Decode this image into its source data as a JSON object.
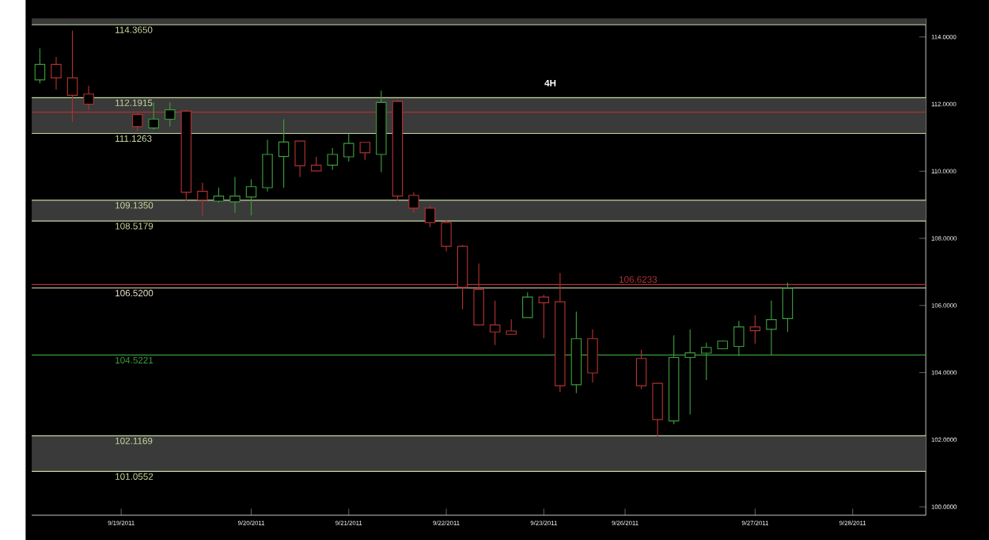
{
  "chart_data": {
    "type": "candlestick",
    "annotations": [
      "4H"
    ],
    "categories": [
      null,
      null,
      null,
      null,
      null,
      "9/19/2011",
      null,
      null,
      null,
      null,
      null,
      null,
      null,
      "9/20/2011",
      null,
      null,
      null,
      null,
      null,
      "9/21/2011",
      null,
      null,
      null,
      null,
      null,
      "9/22/2011",
      null,
      null,
      null,
      null,
      null,
      "9/23/2011",
      null,
      null,
      null,
      null,
      "9/26/2011",
      null,
      null,
      null,
      null,
      null,
      null,
      null,
      "9/27/2011",
      null,
      null,
      null,
      null,
      null,
      "9/28/2011",
      null,
      null,
      null,
      null
    ],
    "ohlc": [
      [
        112.72,
        113.66,
        112.62,
        113.18
      ],
      [
        113.18,
        113.4,
        112.43,
        112.78
      ],
      [
        112.78,
        114.19,
        111.47,
        112.26
      ],
      [
        112.3,
        112.55,
        111.83,
        112.0
      ],
      null,
      null,
      [
        111.69,
        111.73,
        111.19,
        111.33
      ],
      [
        111.29,
        112.05,
        111.23,
        111.55
      ],
      [
        111.55,
        112.05,
        111.33,
        111.83
      ],
      [
        111.79,
        111.83,
        109.11,
        109.37
      ],
      [
        109.4,
        109.66,
        108.68,
        109.14
      ],
      [
        109.11,
        109.51,
        109.06,
        109.26
      ],
      [
        109.09,
        109.83,
        108.76,
        109.26
      ],
      [
        109.23,
        109.76,
        108.68,
        109.54
      ],
      [
        109.51,
        110.94,
        109.4,
        110.5
      ],
      [
        110.44,
        111.55,
        109.51,
        110.87
      ],
      [
        110.9,
        110.9,
        109.83,
        110.16
      ],
      [
        110.18,
        110.43,
        110.01,
        110.01
      ],
      [
        110.18,
        110.69,
        110.04,
        110.5
      ],
      [
        110.43,
        111.12,
        110.29,
        110.83
      ],
      [
        110.86,
        110.86,
        110.33,
        110.55
      ],
      [
        110.5,
        112.4,
        109.97,
        112.05
      ],
      [
        112.08,
        112.12,
        109.11,
        109.26
      ],
      [
        109.28,
        109.37,
        108.76,
        108.9
      ],
      [
        108.9,
        108.97,
        108.33,
        108.47
      ],
      [
        108.47,
        108.54,
        107.61,
        107.76
      ],
      [
        107.76,
        107.8,
        105.89,
        106.54
      ],
      [
        106.48,
        107.25,
        105.4,
        105.42
      ],
      [
        105.42,
        106.14,
        104.82,
        105.21
      ],
      [
        105.24,
        105.59,
        105.14,
        105.14
      ],
      [
        105.64,
        106.39,
        105.64,
        106.25
      ],
      [
        106.25,
        106.32,
        105.03,
        106.08
      ],
      [
        106.11,
        106.97,
        103.42,
        103.61
      ],
      [
        103.64,
        105.82,
        103.39,
        105.01
      ],
      [
        105.01,
        105.29,
        103.7,
        103.99
      ],
      null,
      null,
      [
        104.42,
        104.68,
        103.51,
        103.61
      ],
      [
        103.68,
        103.68,
        102.1,
        102.6
      ],
      [
        102.56,
        105.11,
        102.46,
        104.45
      ],
      [
        104.45,
        105.29,
        102.75,
        104.59
      ],
      [
        104.58,
        104.89,
        103.78,
        104.75
      ],
      [
        104.71,
        104.96,
        104.71,
        104.94
      ],
      [
        104.78,
        105.54,
        104.49,
        105.36
      ],
      [
        105.36,
        105.71,
        104.86,
        105.25
      ],
      [
        105.29,
        106.15,
        104.51,
        105.58
      ],
      [
        105.61,
        106.68,
        105.21,
        106.51
      ],
      null,
      null,
      null,
      null,
      null,
      null,
      null,
      null
    ],
    "colors": [
      "#3c9a3c",
      "#b03030",
      "#b03030",
      "#b03030",
      null,
      null,
      "#b03030",
      "#3c9a3c",
      "#3c9a3c",
      "#b03030",
      "#b03030",
      "#3c9a3c",
      "#3c9a3c",
      "#3c9a3c",
      "#3c9a3c",
      "#3c9a3c",
      "#b03030",
      "#b03030",
      "#3c9a3c",
      "#3c9a3c",
      "#b03030",
      "#3c9a3c",
      "#b03030",
      "#b03030",
      "#b03030",
      "#b03030",
      "#b03030",
      "#b03030",
      "#b03030",
      "#b03030",
      "#3c9a3c",
      "#b03030",
      "#b03030",
      "#3c9a3c",
      "#b03030",
      null,
      null,
      "#b03030",
      "#b03030",
      "#3c9a3c",
      "#3c9a3c",
      "#3c9a3c",
      "#3c9a3c",
      "#3c9a3c",
      "#b03030",
      "#3c9a3c",
      "#3c9a3c",
      null,
      null,
      null,
      null,
      null,
      null,
      null,
      null
    ],
    "ylim": [
      99.75,
      114.55
    ],
    "yticks": [
      {
        "value": 100,
        "label": "100.0000"
      },
      {
        "value": 102,
        "label": "102.0000"
      },
      {
        "value": 104,
        "label": "104.0000"
      },
      {
        "value": 106,
        "label": "106.0000"
      },
      {
        "value": 108,
        "label": "108.0000"
      },
      {
        "value": 110,
        "label": "110.0000"
      },
      {
        "value": 112,
        "label": "112.0000"
      },
      {
        "value": 114,
        "label": "114.0000"
      }
    ],
    "bands": [
      {
        "axis": "y",
        "from": 114.365,
        "to": 114.55,
        "color": "#3a3a3a"
      },
      {
        "axis": "y",
        "from": 108.5179,
        "to": 109.135,
        "color": "#3a3a3a"
      },
      {
        "axis": "y",
        "from": 111.1263,
        "to": 112.1915,
        "color": "#3a3a3a"
      },
      {
        "axis": "y",
        "from": 101.0552,
        "to": 102.1169,
        "color": "#3a3a3a"
      }
    ],
    "ref_lines": [
      {
        "axis": "y",
        "value": 114.365,
        "label": "114.3650",
        "color": "#c8d8a0"
      },
      {
        "axis": "y",
        "value": 111.76,
        "color": "#b03030"
      },
      {
        "axis": "y",
        "value": 109.135,
        "label": "109.1350",
        "color": "#c8d8a0"
      },
      {
        "axis": "y",
        "value": 108.5179,
        "label": "108.5179",
        "color": "#c8d8a0"
      },
      {
        "axis": "y",
        "value": 106.52,
        "label": "106.5200",
        "color": "#e8e4c8"
      },
      {
        "axis": "y",
        "value": 104.5221,
        "label": "104.5221",
        "color": "#3a9a3a"
      },
      {
        "axis": "y",
        "value": 112.1915,
        "label": "112.1915",
        "color": "#c8d8a0"
      },
      {
        "axis": "y",
        "value": 111.1263,
        "label": "111.1263",
        "color": "#c8d8a0"
      },
      {
        "axis": "y",
        "value": 106.6233,
        "label": "106.6233",
        "color": "#b03030"
      },
      {
        "axis": "y",
        "value": 102.1169,
        "label": "102.1169",
        "color": "#c8d8a0"
      },
      {
        "axis": "y",
        "value": 101.0552,
        "label": "101.0552",
        "color": "#c8d8a0"
      }
    ],
    "grid": false
  }
}
